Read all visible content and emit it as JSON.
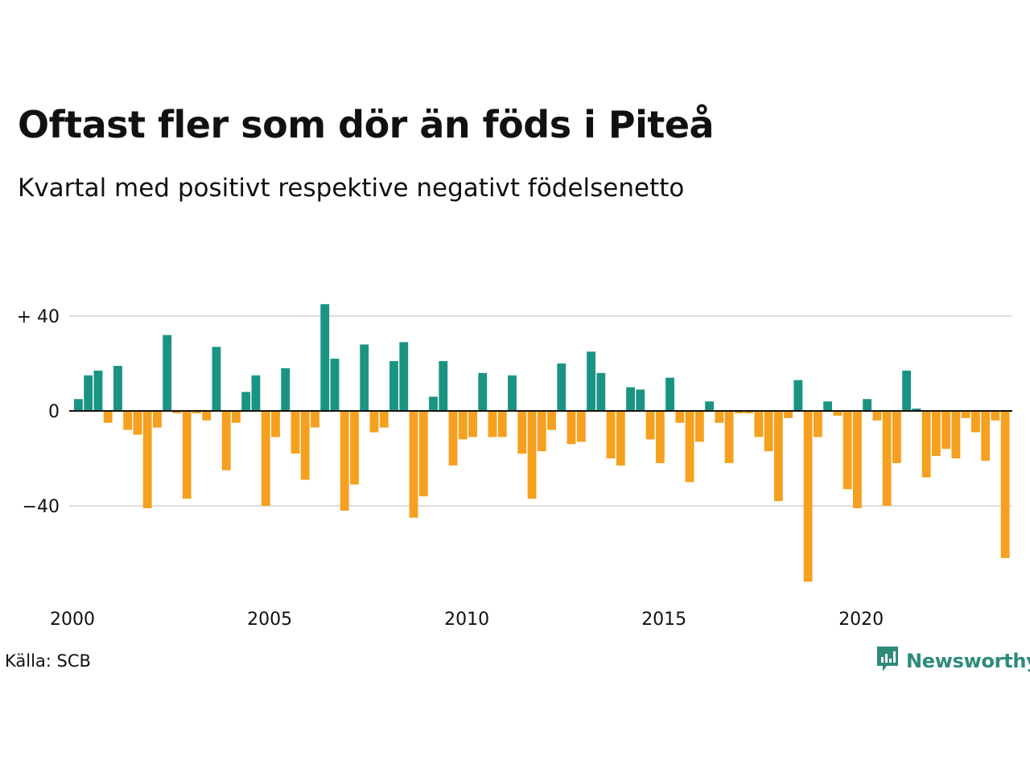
{
  "header": {
    "title": "Oftast fler som dör än föds i Piteå",
    "subtitle": "Kvartal med positivt respektive negativt födelsenetto"
  },
  "footer": {
    "source": "Källa: SCB",
    "brand": "Newsworthy"
  },
  "colors": {
    "positive": "#1a9482",
    "negative": "#f5a01e",
    "grid": "#dddddd",
    "axis": "#111111",
    "brand": "#2e8b7a"
  },
  "chart_data": {
    "type": "bar",
    "x_start": "2000 Q1",
    "frequency": "quarterly",
    "values": [
      5,
      15,
      17,
      -5,
      19,
      -8,
      -10,
      -41,
      -7,
      32,
      -1,
      -37,
      -1,
      -4,
      27,
      -25,
      -5,
      8,
      15,
      -40,
      -11,
      18,
      -18,
      -29,
      -7,
      45,
      22,
      -42,
      -31,
      28,
      -9,
      -7,
      21,
      29,
      -45,
      -36,
      6,
      21,
      -23,
      -12,
      -11,
      16,
      -11,
      -11,
      15,
      -18,
      -37,
      -17,
      -8,
      20,
      -14,
      -13,
      25,
      16,
      -20,
      -23,
      10,
      9,
      -12,
      -22,
      14,
      -5,
      -30,
      -13,
      4,
      -5,
      -22,
      -1,
      -1,
      -11,
      -17,
      -38,
      -3,
      13,
      -72,
      -11,
      4,
      -2,
      -33,
      -41,
      5,
      -4,
      -40,
      -22,
      17,
      1,
      -28,
      -19,
      -16,
      -20,
      -3,
      -9,
      -21,
      -4,
      -62
    ],
    "x_ticks": [
      "2000",
      "2005",
      "2010",
      "2015",
      "2020"
    ],
    "y_ticks": [
      {
        "value": 40,
        "label": "+ 40"
      },
      {
        "value": 0,
        "label": "0"
      },
      {
        "value": -40,
        "label": "−40"
      }
    ],
    "ylim": [
      -75,
      48
    ],
    "grid": true
  }
}
